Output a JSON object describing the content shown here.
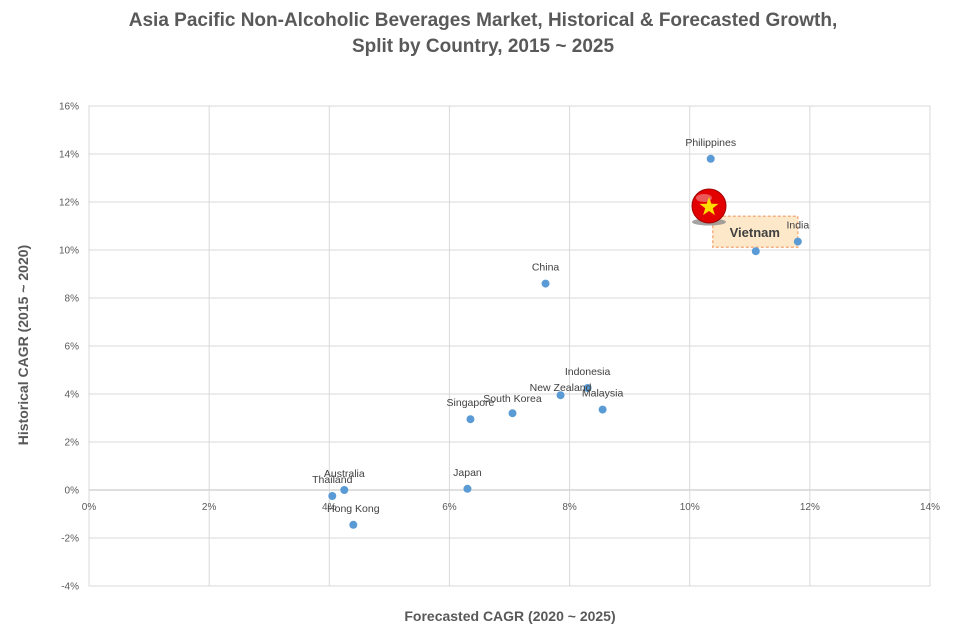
{
  "chart_data": {
    "type": "scatter",
    "title": "Asia Pacific Non-Alcoholic Beverages Market, Historical & Forecasted Growth, Split by Country, 2015 ~ 2025",
    "title_lines": [
      "Asia Pacific Non-Alcoholic Beverages Market, Historical & Forecasted Growth,",
      "Split by Country, 2015 ~ 2025"
    ],
    "xlabel": "Forecasted CAGR (2020 ~ 2025)",
    "ylabel": "Historical CAGR (2015 ~ 2020)",
    "xlim": [
      0,
      14
    ],
    "ylim": [
      -4,
      16
    ],
    "x_ticks": [
      0,
      2,
      4,
      6,
      8,
      10,
      12,
      14
    ],
    "y_ticks": [
      -4,
      -2,
      0,
      2,
      4,
      6,
      8,
      10,
      12,
      14,
      16
    ],
    "x_tick_labels": [
      "0%",
      "2%",
      "4%",
      "6%",
      "8%",
      "10%",
      "12%",
      "14%"
    ],
    "y_tick_labels": [
      "-4%",
      "-2%",
      "0%",
      "2%",
      "4%",
      "6%",
      "8%",
      "10%",
      "12%",
      "14%",
      "16%"
    ],
    "grid": true,
    "legend": "none",
    "colors": {
      "point": "#5b9bd5",
      "grid": "#d9d9d9",
      "text": "#595959",
      "callout_fill": "#fde9c9",
      "callout_border": "#f4b183",
      "flag_red": "#e30000",
      "flag_star": "#ffdd00"
    },
    "points": [
      {
        "label": "Philippines",
        "x": 10.35,
        "y": 13.8
      },
      {
        "label": "India",
        "x": 11.8,
        "y": 10.35
      },
      {
        "label": "Vietnam",
        "x": 11.1,
        "y": 9.95
      },
      {
        "label": "China",
        "x": 7.6,
        "y": 8.6
      },
      {
        "label": "Indonesia",
        "x": 8.3,
        "y": 4.25
      },
      {
        "label": "New Zealand",
        "x": 7.85,
        "y": 3.95
      },
      {
        "label": "Malaysia",
        "x": 8.55,
        "y": 3.35
      },
      {
        "label": "South Korea",
        "x": 7.05,
        "y": 3.2
      },
      {
        "label": "Singapore",
        "x": 6.35,
        "y": 2.95
      },
      {
        "label": "Australia",
        "x": 4.25,
        "y": 0.0
      },
      {
        "label": "Thailand",
        "x": 4.05,
        "y": -0.25
      },
      {
        "label": "Japan",
        "x": 6.3,
        "y": 0.05
      },
      {
        "label": "Hong Kong",
        "x": 4.4,
        "y": -1.45
      }
    ],
    "highlight": {
      "label": "Vietnam",
      "icon": "vietnam-flag-icon"
    }
  }
}
